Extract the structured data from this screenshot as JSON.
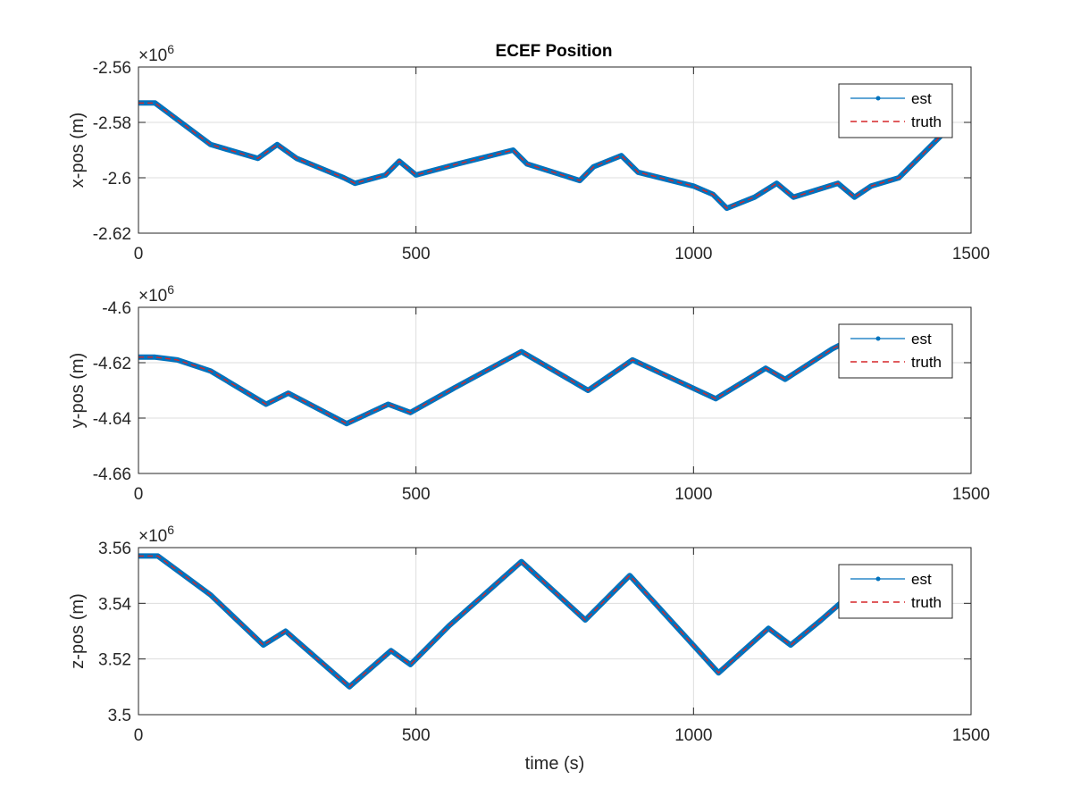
{
  "title": "ECEF Position",
  "colors": {
    "est": "#0072BD",
    "truth": "#D62728",
    "grid": "#DDDDDD",
    "axes": "#262626"
  },
  "chart_data": [
    {
      "type": "line",
      "ylabel": "x-pos (m)",
      "xlabel": "",
      "exponent_base": "×10",
      "exponent_power": "6",
      "xlim": [
        0,
        1500
      ],
      "ylim": [
        -2.62,
        -2.56
      ],
      "xticks": [
        0,
        500,
        1000,
        1500
      ],
      "xtick_labels": [
        "0",
        "500",
        "1000",
        "1500"
      ],
      "yticks": [
        -2.62,
        -2.6,
        -2.58,
        -2.56
      ],
      "ytick_labels": [
        "-2.62",
        "-2.6",
        "-2.58",
        "-2.56"
      ],
      "grid": true,
      "legend": "top-right",
      "legend_entries": [
        "est",
        "truth"
      ],
      "series": [
        {
          "name": "est",
          "x": [
            0,
            30,
            130,
            215,
            250,
            285,
            370,
            390,
            445,
            470,
            500,
            575,
            675,
            700,
            795,
            820,
            870,
            900,
            1000,
            1035,
            1060,
            1110,
            1150,
            1180,
            1260,
            1290,
            1320,
            1370,
            1450
          ],
          "y": [
            -2.573,
            -2.573,
            -2.588,
            -2.593,
            -2.588,
            -2.593,
            -2.6,
            -2.602,
            -2.599,
            -2.594,
            -2.599,
            -2.595,
            -2.59,
            -2.595,
            -2.601,
            -2.596,
            -2.592,
            -2.598,
            -2.603,
            -2.606,
            -2.611,
            -2.607,
            -2.602,
            -2.607,
            -2.602,
            -2.607,
            -2.603,
            -2.6,
            -2.584
          ]
        },
        {
          "name": "truth",
          "x": [
            0,
            30,
            130,
            215,
            250,
            285,
            370,
            390,
            445,
            470,
            500,
            575,
            675,
            700,
            795,
            820,
            870,
            900,
            1000,
            1035,
            1060,
            1110,
            1150,
            1180,
            1260,
            1290,
            1320,
            1370,
            1450
          ],
          "y": [
            -2.573,
            -2.573,
            -2.588,
            -2.593,
            -2.588,
            -2.593,
            -2.6,
            -2.602,
            -2.599,
            -2.594,
            -2.599,
            -2.595,
            -2.59,
            -2.595,
            -2.601,
            -2.596,
            -2.592,
            -2.598,
            -2.603,
            -2.606,
            -2.611,
            -2.607,
            -2.602,
            -2.607,
            -2.602,
            -2.607,
            -2.603,
            -2.6,
            -2.584
          ]
        }
      ]
    },
    {
      "type": "line",
      "ylabel": "y-pos (m)",
      "xlabel": "",
      "exponent_base": "×10",
      "exponent_power": "6",
      "xlim": [
        0,
        1500
      ],
      "ylim": [
        -4.66,
        -4.6
      ],
      "xticks": [
        0,
        500,
        1000,
        1500
      ],
      "xtick_labels": [
        "0",
        "500",
        "1000",
        "1500"
      ],
      "yticks": [
        -4.66,
        -4.64,
        -4.62,
        -4.6
      ],
      "ytick_labels": [
        "-4.66",
        "-4.64",
        "-4.62",
        "-4.6"
      ],
      "grid": true,
      "legend": "top-right",
      "legend_entries": [
        "est",
        "truth"
      ],
      "series": [
        {
          "name": "est",
          "x": [
            0,
            30,
            70,
            130,
            230,
            270,
            375,
            450,
            490,
            570,
            690,
            810,
            890,
            1040,
            1130,
            1165,
            1250,
            1270
          ],
          "y": [
            -4.618,
            -4.618,
            -4.619,
            -4.623,
            -4.635,
            -4.631,
            -4.642,
            -4.635,
            -4.638,
            -4.629,
            -4.616,
            -4.63,
            -4.619,
            -4.633,
            -4.622,
            -4.626,
            -4.615,
            -4.613
          ]
        },
        {
          "name": "truth",
          "x": [
            0,
            30,
            70,
            130,
            230,
            270,
            375,
            450,
            490,
            570,
            690,
            810,
            890,
            1040,
            1130,
            1165,
            1250,
            1270
          ],
          "y": [
            -4.618,
            -4.618,
            -4.619,
            -4.623,
            -4.635,
            -4.631,
            -4.642,
            -4.635,
            -4.638,
            -4.629,
            -4.616,
            -4.63,
            -4.619,
            -4.633,
            -4.622,
            -4.626,
            -4.615,
            -4.613
          ]
        }
      ]
    },
    {
      "type": "line",
      "ylabel": "z-pos (m)",
      "xlabel": "time (s)",
      "exponent_base": "×10",
      "exponent_power": "6",
      "xlim": [
        0,
        1500
      ],
      "ylim": [
        3.5,
        3.56
      ],
      "xticks": [
        0,
        500,
        1000,
        1500
      ],
      "xtick_labels": [
        "0",
        "500",
        "1000",
        "1500"
      ],
      "yticks": [
        3.5,
        3.52,
        3.54,
        3.56
      ],
      "ytick_labels": [
        "3.5",
        "3.52",
        "3.54",
        "3.56"
      ],
      "grid": true,
      "legend": "top-right",
      "legend_entries": [
        "est",
        "truth"
      ],
      "series": [
        {
          "name": "est",
          "x": [
            0,
            35,
            130,
            225,
            265,
            380,
            455,
            490,
            560,
            690,
            805,
            885,
            1045,
            1135,
            1175,
            1230,
            1270
          ],
          "y": [
            3.557,
            3.557,
            3.543,
            3.525,
            3.53,
            3.51,
            3.523,
            3.518,
            3.532,
            3.555,
            3.534,
            3.55,
            3.515,
            3.531,
            3.525,
            3.534,
            3.541
          ]
        },
        {
          "name": "truth",
          "x": [
            0,
            35,
            130,
            225,
            265,
            380,
            455,
            490,
            560,
            690,
            805,
            885,
            1045,
            1135,
            1175,
            1230,
            1270
          ],
          "y": [
            3.557,
            3.557,
            3.543,
            3.525,
            3.53,
            3.51,
            3.523,
            3.518,
            3.532,
            3.555,
            3.534,
            3.55,
            3.515,
            3.531,
            3.525,
            3.534,
            3.541
          ]
        }
      ]
    }
  ]
}
